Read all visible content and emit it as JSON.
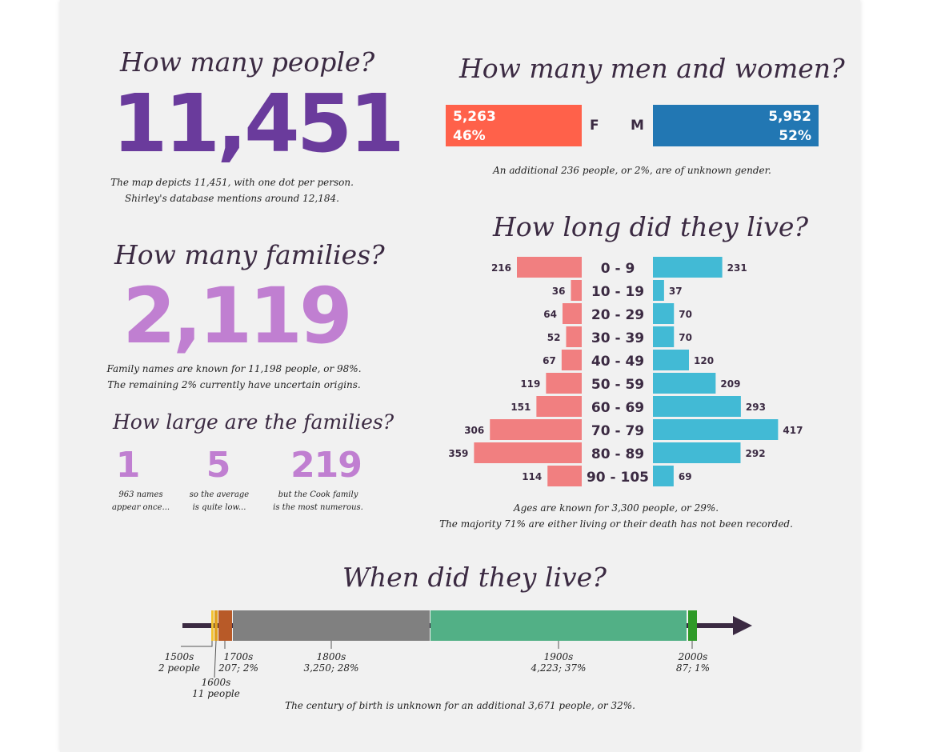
{
  "people": {
    "title": "How many people?",
    "count": "11,451",
    "note_line1": "The map depicts 11,451, with one dot per person.",
    "note_line2": "Shirley's database mentions around 12,184."
  },
  "families": {
    "title": "How many families?",
    "count": "2,119",
    "note_line1": "Family names are known for 11,198 people, or 98%.",
    "note_line2": "The remaining 2% currently have uncertain origins."
  },
  "family_size": {
    "title": "How large are the families?",
    "stats": [
      {
        "value": "1",
        "line1": "963 names",
        "line2": "appear once..."
      },
      {
        "value": "5",
        "line1": "so the average",
        "line2": "is quite low..."
      },
      {
        "value": "219",
        "line1": "but the Cook family",
        "line2": "is the most numerous."
      }
    ]
  },
  "gender": {
    "title": "How many men and women?",
    "female": {
      "count": "5,263",
      "pct": "46%",
      "letter": "F"
    },
    "male": {
      "count": "5,952",
      "pct": "52%",
      "letter": "M"
    },
    "note": "An additional 236 people, or 2%, are of unknown gender."
  },
  "lifespan": {
    "title": "How long did they live?",
    "note_line1": "Ages are known for 3,300 people, or 29%.",
    "note_line2": "The majority 71% are either living or their death has not been recorded."
  },
  "timeline": {
    "title": "When did they live?",
    "note": "The century of birth is unknown for an additional 3,671 people, or 32%.",
    "labels": [
      {
        "century": "1500s",
        "detail": "2 people"
      },
      {
        "century": "1600s",
        "detail": "11 people"
      },
      {
        "century": "1700s",
        "detail": "207; 2%"
      },
      {
        "century": "1800s",
        "detail": "3,250; 28%"
      },
      {
        "century": "1900s",
        "detail": "4,223; 37%"
      },
      {
        "century": "2000s",
        "detail": "87; 1%"
      }
    ]
  },
  "colors": {
    "purple_dark": "#6a3b9c",
    "purple_light": "#c07fd1",
    "female": "#ff614a",
    "male": "#2277b3",
    "pyramid_female": "#f17f80",
    "pyramid_male": "#42bad5",
    "c1500": "#f2c230",
    "c1600": "#e0a020",
    "c1700": "#b85a28",
    "c1800": "#808080",
    "c1900": "#52b086",
    "c2000": "#2f9a28",
    "axis": "#3b2a42"
  },
  "chart_data": [
    {
      "type": "bar",
      "orientation": "horizontal-pyramid",
      "categories": [
        "0 - 9",
        "10 - 19",
        "20 - 29",
        "30 - 39",
        "40 - 49",
        "50 - 59",
        "60 - 69",
        "70 - 79",
        "80 - 89",
        "90 - 105"
      ],
      "series": [
        {
          "values": [
            216,
            36,
            64,
            52,
            67,
            119,
            151,
            306,
            359,
            114
          ]
        },
        {
          "values": [
            231,
            37,
            70,
            70,
            120,
            209,
            293,
            417,
            292,
            69
          ]
        }
      ]
    },
    {
      "type": "bar",
      "orientation": "stacked-timeline",
      "categories": [
        "1500s",
        "1600s",
        "1700s",
        "1800s",
        "1900s",
        "2000s"
      ],
      "values": [
        2,
        11,
        207,
        3250,
        4223,
        87
      ]
    }
  ]
}
